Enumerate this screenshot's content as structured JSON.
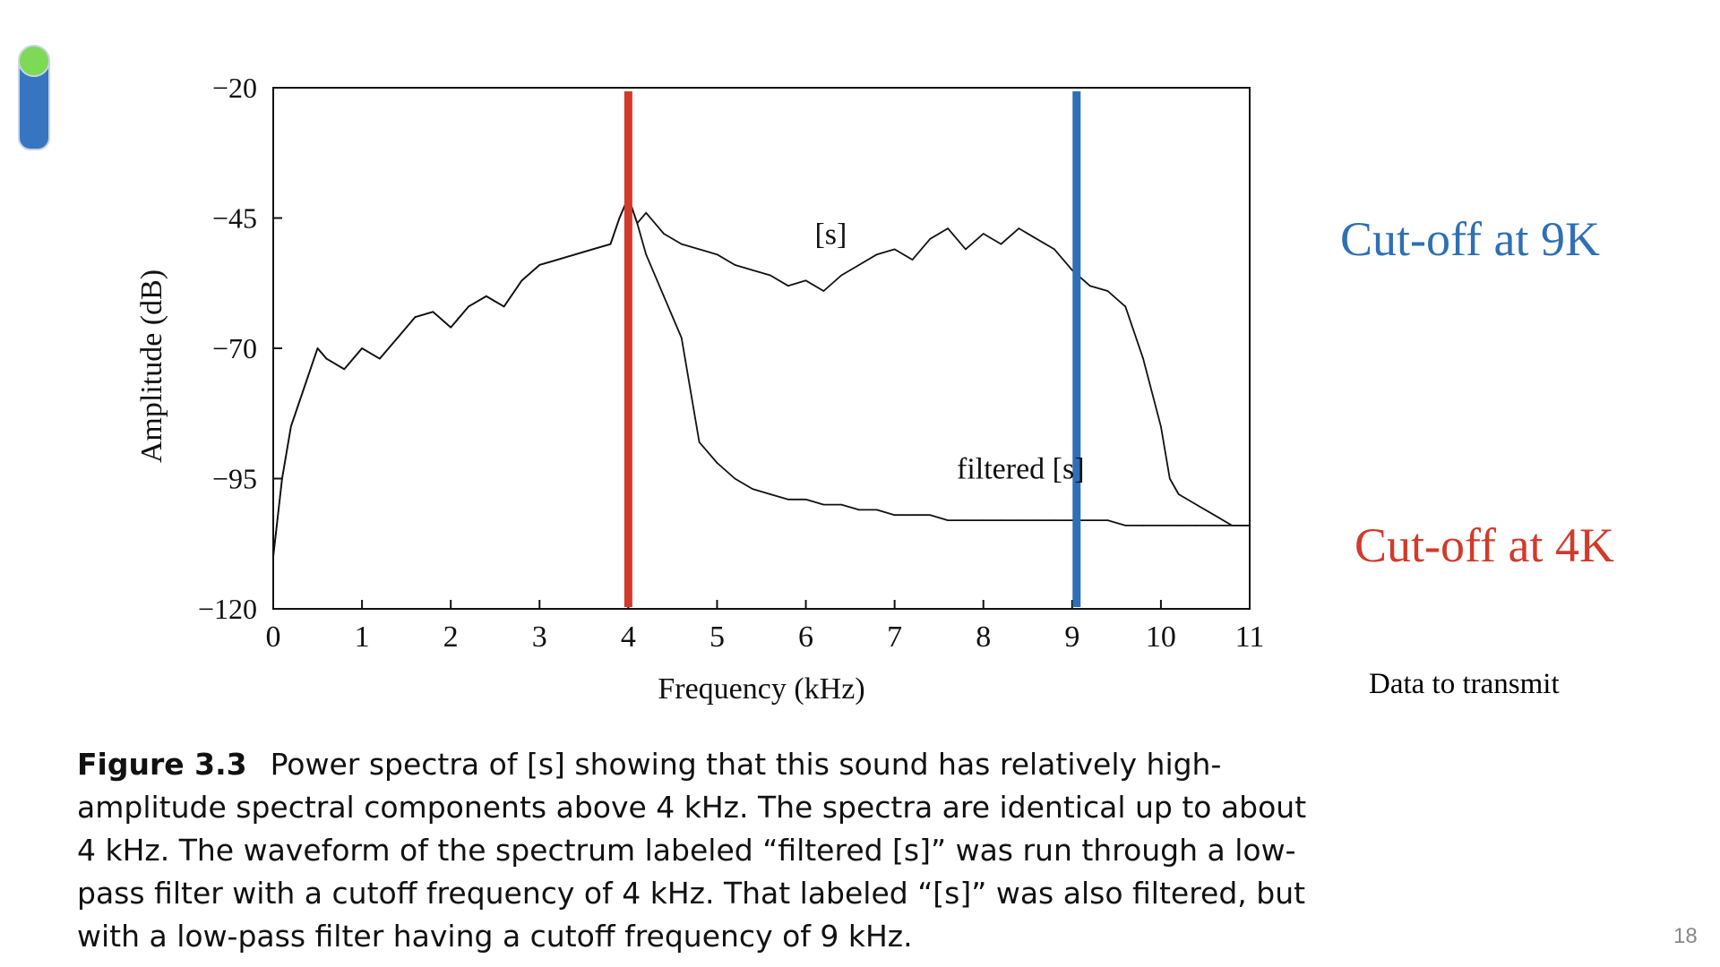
{
  "chart_data": {
    "type": "line",
    "xlabel": "Frequency (kHz)",
    "ylabel": "Amplitude (dB)",
    "xlim": [
      0,
      11
    ],
    "ylim": [
      -120,
      -20
    ],
    "x_ticks": [
      "0",
      "1",
      "2",
      "3",
      "4",
      "5",
      "6",
      "7",
      "8",
      "9",
      "10",
      "11"
    ],
    "y_ticks": [
      "−20",
      "−45",
      "−70",
      "−95",
      "−120"
    ],
    "y_tick_values": [
      -20,
      -45,
      -70,
      -95,
      -120
    ],
    "grid": false,
    "series": [
      {
        "name": "[s]",
        "x": [
          0,
          0.1,
          0.2,
          0.3,
          0.4,
          0.5,
          0.6,
          0.8,
          1.0,
          1.2,
          1.4,
          1.6,
          1.8,
          2.0,
          2.2,
          2.4,
          2.6,
          2.8,
          3.0,
          3.2,
          3.4,
          3.6,
          3.8,
          3.9,
          4.0,
          4.1,
          4.2,
          4.4,
          4.6,
          4.8,
          5.0,
          5.2,
          5.4,
          5.6,
          5.8,
          6.0,
          6.2,
          6.4,
          6.6,
          6.8,
          7.0,
          7.2,
          7.4,
          7.6,
          7.8,
          8.0,
          8.2,
          8.4,
          8.6,
          8.8,
          9.0,
          9.2,
          9.4,
          9.6,
          9.8,
          10.0,
          10.1,
          10.2,
          10.4,
          10.6,
          10.8,
          11.0
        ],
        "y": [
          -110,
          -95,
          -85,
          -80,
          -75,
          -70,
          -72,
          -74,
          -70,
          -72,
          -68,
          -64,
          -63,
          -66,
          -62,
          -60,
          -62,
          -57,
          -54,
          -53,
          -52,
          -51,
          -50,
          -45,
          -41,
          -46,
          -44,
          -48,
          -50,
          -51,
          -52,
          -54,
          -55,
          -56,
          -58,
          -57,
          -59,
          -56,
          -54,
          -52,
          -51,
          -53,
          -49,
          -47,
          -51,
          -48,
          -50,
          -47,
          -49,
          -51,
          -55,
          -58,
          -59,
          -62,
          -72,
          -85,
          -95,
          -98,
          -100,
          -102,
          -104,
          -104
        ]
      },
      {
        "name": "filtered [s]",
        "x": [
          0,
          0.1,
          0.2,
          0.3,
          0.4,
          0.5,
          0.6,
          0.8,
          1.0,
          1.2,
          1.4,
          1.6,
          1.8,
          2.0,
          2.2,
          2.4,
          2.6,
          2.8,
          3.0,
          3.2,
          3.4,
          3.6,
          3.8,
          3.9,
          4.0,
          4.1,
          4.2,
          4.4,
          4.5,
          4.6,
          4.7,
          4.8,
          5.0,
          5.2,
          5.4,
          5.6,
          5.8,
          6.0,
          6.2,
          6.4,
          6.6,
          6.8,
          7.0,
          7.2,
          7.4,
          7.6,
          7.8,
          8.0,
          8.2,
          8.4,
          8.6,
          8.8,
          9.0,
          9.2,
          9.4,
          9.6,
          9.8,
          10.0,
          10.2,
          10.4,
          10.6,
          10.8,
          11.0
        ],
        "y": [
          -110,
          -95,
          -85,
          -80,
          -75,
          -70,
          -72,
          -74,
          -70,
          -72,
          -68,
          -64,
          -63,
          -66,
          -62,
          -60,
          -62,
          -57,
          -54,
          -53,
          -52,
          -51,
          -50,
          -45,
          -41,
          -46,
          -52,
          -60,
          -64,
          -68,
          -78,
          -88,
          -92,
          -95,
          -97,
          -98,
          -99,
          -99,
          -100,
          -100,
          -101,
          -101,
          -102,
          -102,
          -102,
          -103,
          -103,
          -103,
          -103,
          -103,
          -103,
          -103,
          -103,
          -103,
          -103,
          -104,
          -104,
          -104,
          -104,
          -104,
          -104,
          -104,
          -104
        ]
      }
    ],
    "annotations": [
      {
        "text": "[s]",
        "x": 6.1,
        "y": -50
      },
      {
        "text": "filtered [s]",
        "x": 7.7,
        "y": -95
      }
    ],
    "cutoff_lines": [
      {
        "x": 4.0,
        "color": "#d23a2b"
      },
      {
        "x": 9.05,
        "color": "#2f6fb5"
      }
    ]
  },
  "labels": {
    "cutoff_9k": "Cut-off at 9K",
    "cutoff_4k": "Cut-off at 4K",
    "data_to_transmit": "Data to transmit"
  },
  "caption": {
    "label": "Figure 3.3",
    "text": "Power spectra of [s] showing that this sound has relatively high-amplitude spectral components above 4 kHz. The spectra are identical up to about 4 kHz. The waveform of the spectrum labeled “filtered [s]” was run through a low-pass filter with a cutoff frequency of 4 kHz. That labeled “[s]” was also filtered, but with a low-pass filter having a cutoff frequency of 9 kHz."
  },
  "page_number": "18",
  "colors": {
    "cutoff_4k": "#d23a2b",
    "cutoff_9k": "#2f6fb5",
    "toggle_track": "#3775c0",
    "toggle_knob": "#7ed957"
  }
}
